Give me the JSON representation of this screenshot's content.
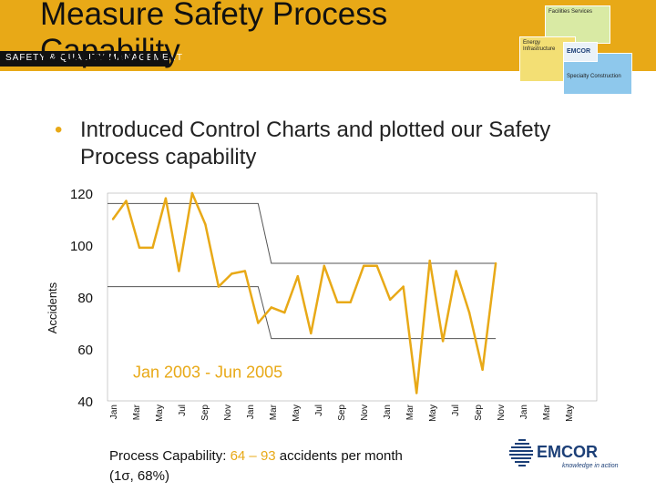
{
  "slide": {
    "title": "Measure Safety Process Capability",
    "tagline": "SAFETY & QUALITY MANAGEMENT",
    "bullet": "Introduced Control Charts and plotted our Safety Process capability",
    "footer_prefix": "Process Capability:",
    "footer_low": "64",
    "footer_dash": "–",
    "footer_high": "93",
    "footer_suffix": "accidents per month",
    "footer_line2": "(1σ, 68%)"
  },
  "logo_boxes": {
    "top": "Facilities Services",
    "mid": "EMCOR",
    "left": "Energy Infrastructure",
    "right": "Specialty Construction"
  },
  "brand": {
    "name": "EMCOR",
    "tagline": "knowledge in action"
  },
  "colors": {
    "band": "#e8a917",
    "series": "#e8a917",
    "limits": "#ffffff",
    "plot_bg": "#ffffff"
  },
  "chart_data": {
    "type": "line",
    "title": "Jan 2003 - Jun 2005",
    "xlabel": "",
    "ylabel": "Accidents",
    "ylim": [
      40,
      120
    ],
    "yticks": [
      40,
      60,
      80,
      100,
      120
    ],
    "x_tick_labels": [
      "Jan",
      "Mar",
      "May",
      "Jul",
      "Sep",
      "Nov",
      "Jan",
      "Mar",
      "May",
      "Jul",
      "Sep",
      "Nov",
      "Jan",
      "Mar",
      "May",
      "Jul",
      "Sep",
      "Nov",
      "Jan",
      "Mar",
      "May"
    ],
    "series": [
      {
        "name": "Accidents per month",
        "values": [
          110,
          117,
          99,
          99,
          118,
          90,
          120,
          108,
          84,
          89,
          90,
          70,
          76,
          74,
          88,
          66,
          92,
          78,
          78,
          92,
          92,
          79,
          84,
          43,
          94,
          63,
          90,
          74,
          52,
          93
        ]
      }
    ],
    "control_limits": [
      {
        "name": "UCL",
        "segments": [
          {
            "from": 0,
            "to": 11,
            "value": 116
          },
          {
            "from": 12,
            "to": 29,
            "value": 93
          }
        ]
      },
      {
        "name": "LCL",
        "segments": [
          {
            "from": 0,
            "to": 11,
            "value": 84
          },
          {
            "from": 12,
            "to": 29,
            "value": 64
          }
        ]
      }
    ]
  }
}
